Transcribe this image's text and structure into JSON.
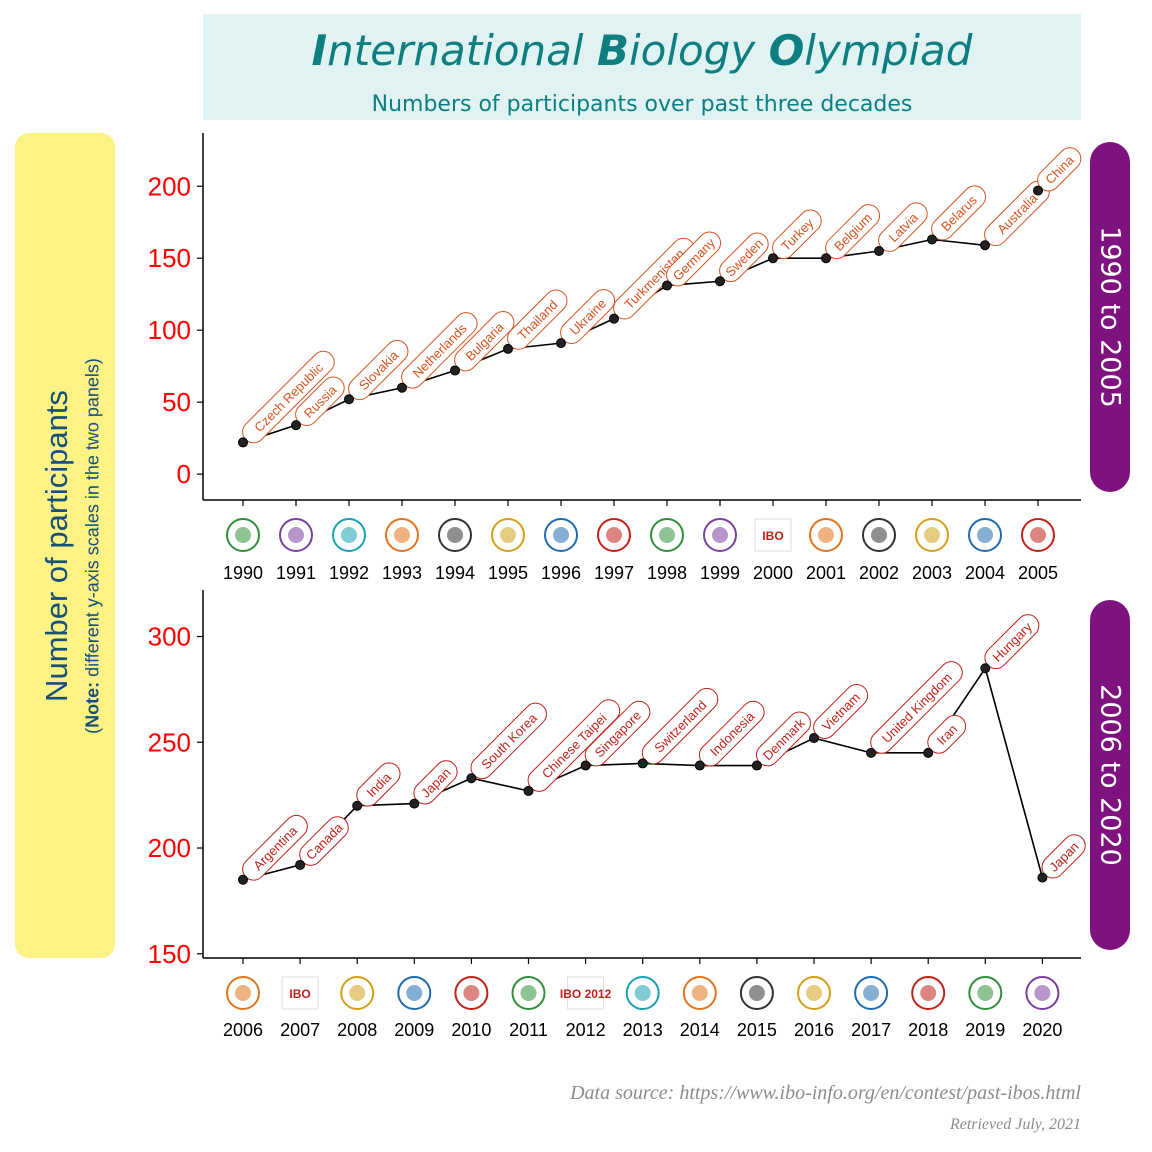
{
  "title": {
    "part1_cap": "I",
    "part1_rest": "nternational ",
    "part2_cap": "B",
    "part2_rest": "iology ",
    "part3_cap": "O",
    "part3_rest": "lympiad"
  },
  "subtitle": "Numbers of participants over past three decades",
  "y_axis_label": "Number of participants",
  "y_axis_note_bold": "Note:",
  "y_axis_note_rest": " different y-axis scales in the two panels)",
  "y_axis_note_open": "(",
  "source": "Data source: https://www.ibo-info.org/en/contest/past-ibos.html",
  "retrieved": "Retrieved July, 2021",
  "colors": {
    "accent": "#0e7f80",
    "strip": "#7e127f",
    "tick_red": "#ff0000",
    "label_orange": "#d9531e",
    "label_red": "#c0221a",
    "yellow_box": "#fdf284",
    "title_bg": "#e0f2f2"
  },
  "chart_data": [
    {
      "type": "line",
      "panel_label": "1990 to 2005",
      "x": [
        1990,
        1991,
        1992,
        1993,
        1994,
        1995,
        1996,
        1997,
        1998,
        1999,
        2000,
        2001,
        2002,
        2003,
        2004,
        2005
      ],
      "values": [
        22,
        34,
        52,
        60,
        72,
        87,
        91,
        108,
        131,
        134,
        150,
        150,
        155,
        163,
        159,
        197
      ],
      "labels": [
        "Czech Republic",
        "Russia",
        "Slovakia",
        "Netherlands",
        "Bulgaria",
        "Thailand",
        "Ukraine",
        "Turkmenistan",
        "Germany",
        "Sweden",
        "Turkey",
        "Belgium",
        "Latvia",
        "Belarus",
        "Australia",
        "China"
      ],
      "yticks": [
        0,
        50,
        100,
        150,
        200
      ],
      "ylim": [
        -18,
        237
      ],
      "label_color": "#d9531e",
      "logo_icons": [
        "logo-1990-icon",
        "logo-1991-icon",
        "logo-1992-icon",
        "logo-1993-icon",
        "logo-1994-icon",
        "logo-1995-icon",
        "logo-1996-icon",
        "logo-1997-icon",
        "logo-1998-icon",
        "logo-1999-icon",
        "logo-2000-icon",
        "logo-2001-icon",
        "logo-2002-icon",
        "logo-2003-icon",
        "logo-2004-icon",
        "logo-2005-icon"
      ],
      "logo_texts": {
        "2000": "IBO"
      }
    },
    {
      "type": "line",
      "panel_label": "2006 to 2020",
      "x": [
        2006,
        2007,
        2008,
        2009,
        2010,
        2011,
        2012,
        2013,
        2014,
        2015,
        2016,
        2017,
        2018,
        2019,
        2020
      ],
      "values": [
        185,
        192,
        220,
        221,
        233,
        227,
        239,
        240,
        239,
        239,
        252,
        245,
        245,
        285,
        186
      ],
      "labels": [
        "Argentina",
        "Canada",
        "India",
        "Japan",
        "South Korea",
        "Chinese Taipei",
        "Singapore",
        "Switzerland",
        "Indonesia",
        "Denmark",
        "Vietnam",
        "United Kingdom",
        "Iran",
        "Hungary",
        "Japan"
      ],
      "yticks": [
        150,
        200,
        250,
        300
      ],
      "ylim": [
        148,
        322
      ],
      "label_color": "#c0221a",
      "logo_icons": [
        "logo-2006-icon",
        "logo-2007-icon",
        "logo-2008-icon",
        "logo-2009-icon",
        "logo-2010-icon",
        "logo-2011-icon",
        "logo-2012-icon",
        "logo-2013-icon",
        "logo-2014-icon",
        "logo-2015-icon",
        "logo-2016-icon",
        "logo-2017-icon",
        "logo-2018-icon",
        "logo-2019-icon",
        "logo-2020-icon"
      ],
      "logo_texts": {
        "2007": "IBO",
        "2012": "IBO 2012"
      }
    }
  ]
}
